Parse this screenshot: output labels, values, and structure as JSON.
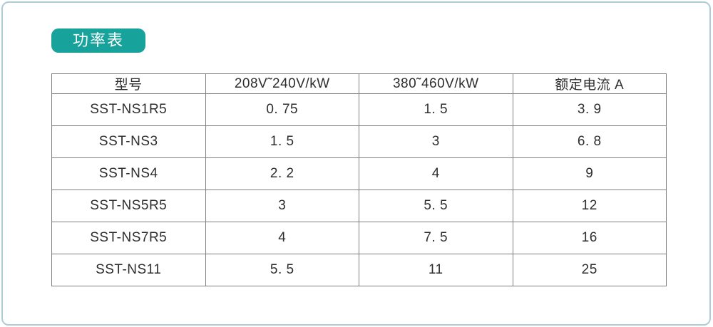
{
  "page": {
    "badge": {
      "label": "功率表"
    },
    "colors": {
      "badge_bg": "#18a29c",
      "frame_border": "#abccd8",
      "table_border": "#7f7f7f",
      "text": "#2e2e2e"
    }
  },
  "table": {
    "headers": [
      "型号",
      "208V˜240V/kW",
      "380˜460V/kW",
      "额定电流 A"
    ],
    "rows": [
      {
        "model": "SST-NS1R5",
        "kw_208_240": "0. 75",
        "kw_380_460": "1. 5",
        "rated_current": "3. 9"
      },
      {
        "model": "SST-NS3",
        "kw_208_240": "1. 5",
        "kw_380_460": "3",
        "rated_current": "6. 8"
      },
      {
        "model": "SST-NS4",
        "kw_208_240": "2. 2",
        "kw_380_460": "4",
        "rated_current": "9"
      },
      {
        "model": "SST-NS5R5",
        "kw_208_240": "3",
        "kw_380_460": "5. 5",
        "rated_current": "12"
      },
      {
        "model": "SST-NS7R5",
        "kw_208_240": "4",
        "kw_380_460": "7. 5",
        "rated_current": "16"
      },
      {
        "model": "SST-NS11",
        "kw_208_240": "5. 5",
        "kw_380_460": "11",
        "rated_current": "25"
      }
    ]
  }
}
